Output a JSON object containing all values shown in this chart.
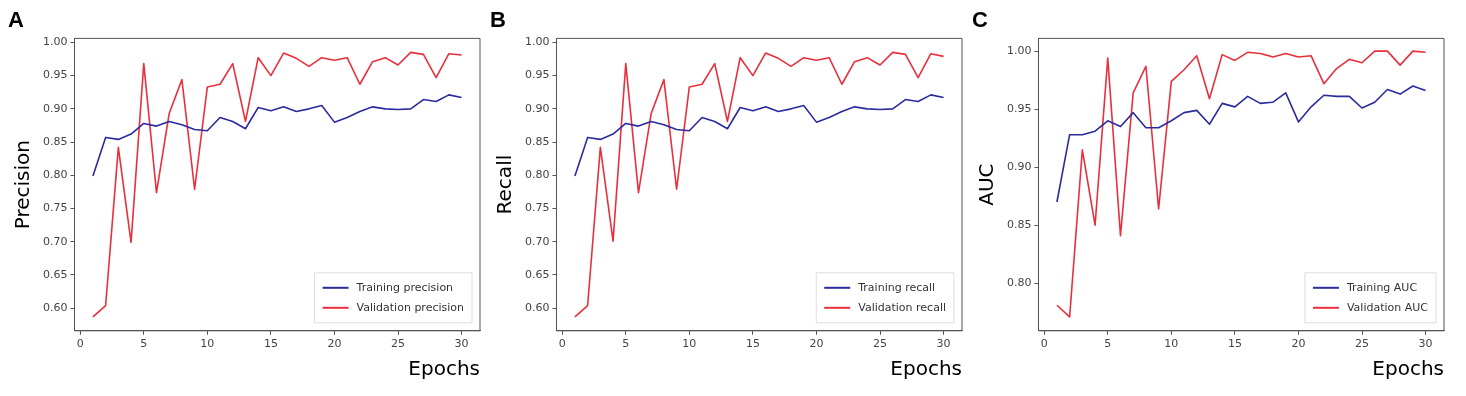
{
  "chart_data": [
    {
      "type": "line",
      "title": "A",
      "xlabel": "Epochs",
      "ylabel": "Precision",
      "legend": "bottom right",
      "grid": false,
      "marker": "none",
      "line_style": "solid",
      "x": [
        1,
        2,
        3,
        4,
        5,
        6,
        7,
        8,
        9,
        10,
        11,
        12,
        13,
        14,
        15,
        16,
        17,
        18,
        19,
        20,
        21,
        22,
        23,
        24,
        25,
        26,
        27,
        28,
        29,
        30
      ],
      "xlim": [
        -0.45,
        31.45
      ],
      "xticks": [
        0,
        5,
        10,
        15,
        20,
        25,
        30
      ],
      "ylim": [
        0.566,
        1.006
      ],
      "yticks": [
        {
          "value": 0.6,
          "label": "0.60"
        },
        {
          "value": 0.65,
          "label": "0.65"
        },
        {
          "value": 0.7,
          "label": "0.70"
        },
        {
          "value": 0.75,
          "label": "0.75"
        },
        {
          "value": 0.8,
          "label": "0.80"
        },
        {
          "value": 0.85,
          "label": "0.85"
        },
        {
          "value": 0.9,
          "label": "0.90"
        },
        {
          "value": 0.95,
          "label": "0.95"
        },
        {
          "value": 1.0,
          "label": "1.00"
        }
      ],
      "series": [
        {
          "name": "Training precision",
          "color": "#2b2ba0",
          "values": [
            0.799,
            0.857,
            0.854,
            0.862,
            0.878,
            0.874,
            0.881,
            0.876,
            0.869,
            0.867,
            0.887,
            0.881,
            0.87,
            0.902,
            0.897,
            0.903,
            0.896,
            0.9,
            0.905,
            0.88,
            0.887,
            0.896,
            0.903,
            0.9,
            0.899,
            0.9,
            0.914,
            0.911,
            0.921,
            0.917
          ]
        },
        {
          "name": "Validation precision",
          "color": "#e8303c",
          "values": [
            0.587,
            0.604,
            0.842,
            0.699,
            0.968,
            0.774,
            0.893,
            0.944,
            0.779,
            0.933,
            0.937,
            0.968,
            0.881,
            0.977,
            0.95,
            0.984,
            0.976,
            0.964,
            0.977,
            0.973,
            0.977,
            0.937,
            0.971,
            0.977,
            0.966,
            0.985,
            0.982,
            0.947,
            0.983,
            0.981
          ]
        }
      ]
    },
    {
      "type": "line",
      "title": "B",
      "xlabel": "Epochs",
      "ylabel": "Recall",
      "legend": "bottom right",
      "grid": false,
      "marker": "none",
      "line_style": "solid",
      "x": [
        1,
        2,
        3,
        4,
        5,
        6,
        7,
        8,
        9,
        10,
        11,
        12,
        13,
        14,
        15,
        16,
        17,
        18,
        19,
        20,
        21,
        22,
        23,
        24,
        25,
        26,
        27,
        28,
        29,
        30
      ],
      "xlim": [
        -0.45,
        31.45
      ],
      "xticks": [
        0,
        5,
        10,
        15,
        20,
        25,
        30
      ],
      "ylim": [
        0.566,
        1.006
      ],
      "yticks": [
        {
          "value": 0.6,
          "label": "0.60"
        },
        {
          "value": 0.65,
          "label": "0.65"
        },
        {
          "value": 0.7,
          "label": "0.70"
        },
        {
          "value": 0.75,
          "label": "0.75"
        },
        {
          "value": 0.8,
          "label": "0.80"
        },
        {
          "value": 0.85,
          "label": "0.85"
        },
        {
          "value": 0.9,
          "label": "0.90"
        },
        {
          "value": 0.95,
          "label": "0.95"
        },
        {
          "value": 1.0,
          "label": "1.00"
        }
      ],
      "series": [
        {
          "name": "Training recall",
          "color": "#2b2ba0",
          "values": [
            0.799,
            0.857,
            0.854,
            0.862,
            0.878,
            0.874,
            0.881,
            0.876,
            0.869,
            0.867,
            0.887,
            0.881,
            0.87,
            0.902,
            0.897,
            0.903,
            0.896,
            0.9,
            0.905,
            0.88,
            0.887,
            0.896,
            0.903,
            0.9,
            0.899,
            0.9,
            0.914,
            0.911,
            0.921,
            0.917
          ]
        },
        {
          "name": "Validation recall",
          "color": "#e8303c",
          "values": [
            0.587,
            0.604,
            0.842,
            0.701,
            0.968,
            0.774,
            0.893,
            0.944,
            0.779,
            0.933,
            0.937,
            0.968,
            0.881,
            0.977,
            0.95,
            0.984,
            0.976,
            0.964,
            0.977,
            0.973,
            0.977,
            0.937,
            0.971,
            0.977,
            0.966,
            0.985,
            0.982,
            0.947,
            0.983,
            0.979
          ]
        }
      ]
    },
    {
      "type": "line",
      "title": "C",
      "xlabel": "Epochs",
      "ylabel": "AUC",
      "legend": "bottom right",
      "grid": false,
      "marker": "none",
      "line_style": "solid",
      "x": [
        1,
        2,
        3,
        4,
        5,
        6,
        7,
        8,
        9,
        10,
        11,
        12,
        13,
        14,
        15,
        16,
        17,
        18,
        19,
        20,
        21,
        22,
        23,
        24,
        25,
        26,
        27,
        28,
        29,
        30
      ],
      "xlim": [
        -0.45,
        31.45
      ],
      "xticks": [
        0,
        5,
        10,
        15,
        20,
        25,
        30
      ],
      "ylim": [
        0.759,
        1.011
      ],
      "yticks": [
        {
          "value": 0.8,
          "label": "0.80"
        },
        {
          "value": 0.85,
          "label": "0.85"
        },
        {
          "value": 0.9,
          "label": "0.90"
        },
        {
          "value": 0.95,
          "label": "0.95"
        },
        {
          "value": 1.0,
          "label": "1.00"
        }
      ],
      "series": [
        {
          "name": "Training AUC",
          "color": "#2b2ba0",
          "values": [
            0.87,
            0.928,
            0.928,
            0.931,
            0.94,
            0.935,
            0.947,
            0.934,
            0.934,
            0.94,
            0.947,
            0.949,
            0.937,
            0.955,
            0.952,
            0.961,
            0.955,
            0.956,
            0.964,
            0.939,
            0.952,
            0.962,
            0.961,
            0.961,
            0.951,
            0.956,
            0.967,
            0.963,
            0.97,
            0.966
          ]
        },
        {
          "name": "Validation AUC",
          "color": "#e8303c",
          "values": [
            0.781,
            0.771,
            0.915,
            0.85,
            0.994,
            0.841,
            0.964,
            0.987,
            0.864,
            0.974,
            0.984,
            0.996,
            0.959,
            0.997,
            0.992,
            0.999,
            0.998,
            0.995,
            0.998,
            0.995,
            0.996,
            0.972,
            0.985,
            0.993,
            0.99,
            1.0,
            1.0,
            0.988,
            1.0,
            0.999
          ]
        }
      ]
    }
  ]
}
